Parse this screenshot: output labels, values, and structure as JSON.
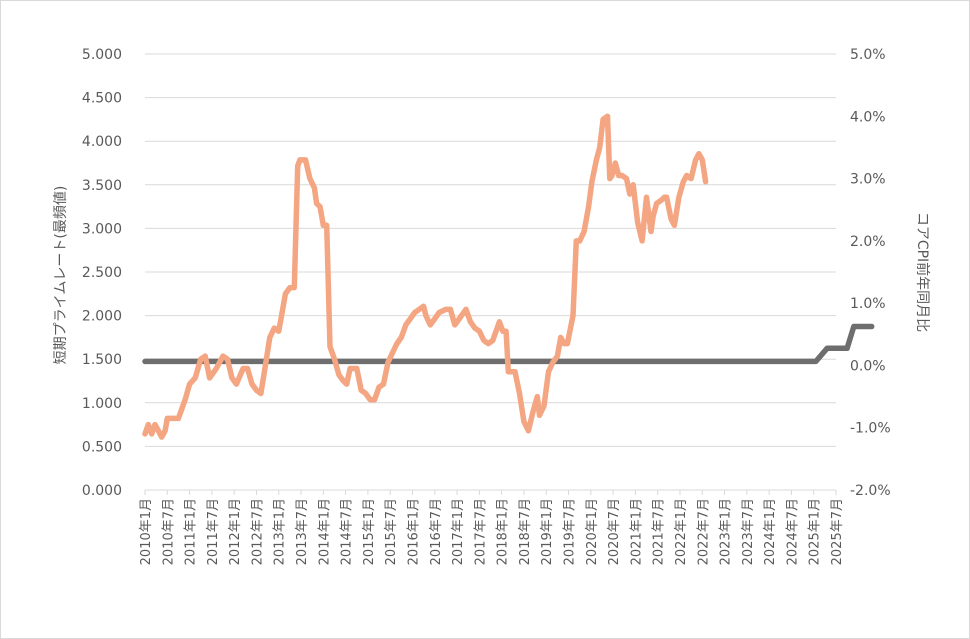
{
  "chart_data": {
    "type": "line",
    "title": "",
    "ylabel": "短期プライムレート(最頻値)",
    "ylabel_right": "コアCPI前年同月比",
    "ylim": [
      0,
      5
    ],
    "ylim_right": [
      -2,
      5
    ],
    "y_ticks": [
      "0.000",
      "0.500",
      "1.000",
      "1.500",
      "2.000",
      "2.500",
      "3.000",
      "3.500",
      "4.000",
      "4.500",
      "5.000"
    ],
    "y_ticks_right": [
      "-2.0%",
      "-1.0%",
      "0.0%",
      "1.0%",
      "2.0%",
      "3.0%",
      "4.0%",
      "5.0%"
    ],
    "categories": [
      "2010年1月",
      "2010年7月",
      "2011年1月",
      "2011年7月",
      "2012年1月",
      "2012年7月",
      "2013年1月",
      "2013年7月",
      "2014年1月",
      "2014年7月",
      "2015年1月",
      "2015年7月",
      "2016年1月",
      "2016年7月",
      "2017年1月",
      "2017年7月",
      "2018年1月",
      "2018年7月",
      "2019年1月",
      "2019年7月",
      "2020年1月",
      "2020年7月",
      "2021年1月",
      "2021年7月",
      "2022年1月",
      "2022年7月",
      "2023年1月",
      "2023年7月",
      "2024年1月",
      "2024年7月",
      "2025年1月",
      "2025年7月"
    ],
    "grid": true,
    "series": [
      {
        "axis": "left",
        "color": "#6e6e6e",
        "points": [
          [
            0,
            1.475
          ],
          [
            30.1,
            1.475
          ],
          [
            30.6,
            1.625
          ],
          [
            31.5,
            1.625
          ],
          [
            31.8,
            1.875
          ],
          [
            32.6,
            1.875
          ]
        ]
      },
      {
        "axis": "right",
        "color": "#f4a582",
        "points": [
          [
            0,
            -1.1
          ],
          [
            0.15,
            -0.95
          ],
          [
            0.3,
            -1.1
          ],
          [
            0.45,
            -0.95
          ],
          [
            0.6,
            -1.05
          ],
          [
            0.75,
            -1.15
          ],
          [
            0.9,
            -1.05
          ],
          [
            1.0,
            -0.85
          ],
          [
            1.5,
            -0.85
          ],
          [
            1.8,
            -0.55
          ],
          [
            2.0,
            -0.3
          ],
          [
            2.25,
            -0.2
          ],
          [
            2.5,
            0.1
          ],
          [
            2.7,
            0.15
          ],
          [
            2.9,
            -0.2
          ],
          [
            3.2,
            -0.05
          ],
          [
            3.5,
            0.15
          ],
          [
            3.7,
            0.1
          ],
          [
            3.9,
            -0.2
          ],
          [
            4.1,
            -0.3
          ],
          [
            4.4,
            -0.05
          ],
          [
            4.6,
            -0.05
          ],
          [
            4.8,
            -0.3
          ],
          [
            5.0,
            -0.4
          ],
          [
            5.2,
            -0.45
          ],
          [
            5.4,
            0.0
          ],
          [
            5.6,
            0.45
          ],
          [
            5.8,
            0.6
          ],
          [
            6.0,
            0.55
          ],
          [
            6.1,
            0.75
          ],
          [
            6.3,
            1.15
          ],
          [
            6.5,
            1.25
          ],
          [
            6.7,
            1.25
          ],
          [
            6.85,
            3.2
          ],
          [
            6.95,
            3.3
          ],
          [
            7.2,
            3.3
          ],
          [
            7.4,
            3.0
          ],
          [
            7.6,
            2.85
          ],
          [
            7.7,
            2.6
          ],
          [
            7.85,
            2.55
          ],
          [
            8.0,
            2.25
          ],
          [
            8.15,
            2.25
          ],
          [
            8.3,
            0.3
          ],
          [
            8.5,
            0.1
          ],
          [
            8.7,
            -0.15
          ],
          [
            8.9,
            -0.25
          ],
          [
            9.05,
            -0.3
          ],
          [
            9.2,
            -0.05
          ],
          [
            9.5,
            -0.05
          ],
          [
            9.7,
            -0.4
          ],
          [
            9.9,
            -0.45
          ],
          [
            10.1,
            -0.55
          ],
          [
            10.3,
            -0.55
          ],
          [
            10.5,
            -0.35
          ],
          [
            10.7,
            -0.3
          ],
          [
            10.9,
            0.05
          ],
          [
            11.1,
            0.2
          ],
          [
            11.3,
            0.35
          ],
          [
            11.5,
            0.45
          ],
          [
            11.7,
            0.65
          ],
          [
            11.9,
            0.75
          ],
          [
            12.1,
            0.85
          ],
          [
            12.3,
            0.9
          ],
          [
            12.5,
            0.95
          ],
          [
            12.6,
            0.8
          ],
          [
            12.8,
            0.65
          ],
          [
            13.0,
            0.75
          ],
          [
            13.2,
            0.85
          ],
          [
            13.5,
            0.9
          ],
          [
            13.7,
            0.9
          ],
          [
            13.9,
            0.65
          ],
          [
            14.0,
            0.7
          ],
          [
            14.2,
            0.8
          ],
          [
            14.4,
            0.9
          ],
          [
            14.6,
            0.7
          ],
          [
            14.8,
            0.6
          ],
          [
            15.0,
            0.55
          ],
          [
            15.2,
            0.4
          ],
          [
            15.4,
            0.35
          ],
          [
            15.6,
            0.4
          ],
          [
            15.8,
            0.6
          ],
          [
            15.9,
            0.7
          ],
          [
            16.05,
            0.55
          ],
          [
            16.2,
            0.55
          ],
          [
            16.3,
            -0.1
          ],
          [
            16.6,
            -0.1
          ],
          [
            16.8,
            -0.45
          ],
          [
            17.0,
            -0.9
          ],
          [
            17.2,
            -1.05
          ],
          [
            17.4,
            -0.75
          ],
          [
            17.6,
            -0.5
          ],
          [
            17.7,
            -0.8
          ],
          [
            17.9,
            -0.65
          ],
          [
            18.1,
            -0.1
          ],
          [
            18.3,
            0.05
          ],
          [
            18.5,
            0.15
          ],
          [
            18.65,
            0.45
          ],
          [
            18.8,
            0.35
          ],
          [
            18.95,
            0.35
          ],
          [
            19.2,
            0.8
          ],
          [
            19.35,
            2.0
          ],
          [
            19.5,
            2.0
          ],
          [
            19.7,
            2.15
          ],
          [
            19.9,
            2.55
          ],
          [
            20.05,
            2.95
          ],
          [
            20.25,
            3.3
          ],
          [
            20.4,
            3.5
          ],
          [
            20.55,
            3.95
          ],
          [
            20.75,
            4.0
          ],
          [
            20.85,
            3.0
          ],
          [
            20.95,
            3.05
          ],
          [
            21.1,
            3.25
          ],
          [
            21.25,
            3.05
          ],
          [
            21.4,
            3.05
          ],
          [
            21.6,
            3.0
          ],
          [
            21.75,
            2.75
          ],
          [
            21.9,
            2.9
          ],
          [
            22.1,
            2.3
          ],
          [
            22.3,
            2.0
          ],
          [
            22.5,
            2.7
          ],
          [
            22.7,
            2.15
          ],
          [
            22.8,
            2.4
          ],
          [
            22.95,
            2.6
          ],
          [
            23.15,
            2.65
          ],
          [
            23.3,
            2.7
          ],
          [
            23.4,
            2.7
          ],
          [
            23.6,
            2.35
          ],
          [
            23.75,
            2.25
          ],
          [
            23.95,
            2.7
          ],
          [
            24.15,
            2.95
          ],
          [
            24.3,
            3.05
          ],
          [
            24.5,
            3.0
          ],
          [
            24.7,
            3.3
          ],
          [
            24.85,
            3.4
          ],
          [
            25.0,
            3.3
          ],
          [
            25.15,
            2.95
          ]
        ]
      }
    ]
  }
}
